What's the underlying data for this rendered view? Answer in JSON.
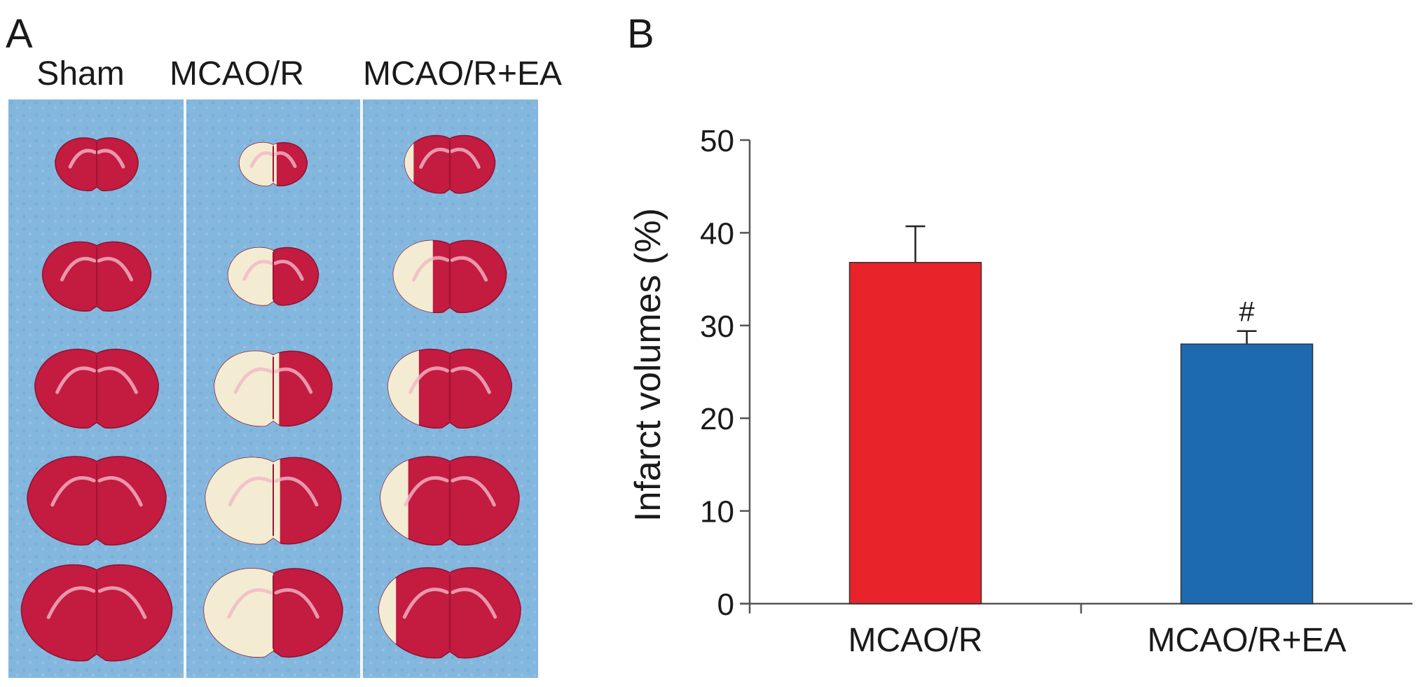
{
  "panel_a": {
    "letter": "A",
    "group_labels": [
      "Sham",
      "MCAO/R",
      "MCAO/R+EA"
    ],
    "colors": {
      "background": "#84b7de",
      "tissue_healthy": "#c41b40",
      "tissue_infarct": "#f3ecd2",
      "divider": "#f4f7fb"
    },
    "columns": [
      {
        "name": "Sham",
        "slices": [
          {
            "size": 0.55,
            "infarct_fraction": 0.0
          },
          {
            "size": 0.72,
            "infarct_fraction": 0.0
          },
          {
            "size": 0.82,
            "infarct_fraction": 0.0
          },
          {
            "size": 0.92,
            "infarct_fraction": 0.0
          },
          {
            "size": 1.0,
            "infarct_fraction": 0.0
          }
        ]
      },
      {
        "name": "MCAO/R",
        "slices": [
          {
            "size": 0.45,
            "infarct_fraction": 0.55
          },
          {
            "size": 0.6,
            "infarct_fraction": 0.5
          },
          {
            "size": 0.78,
            "infarct_fraction": 0.55
          },
          {
            "size": 0.9,
            "infarct_fraction": 0.55
          },
          {
            "size": 0.92,
            "infarct_fraction": 0.5
          }
        ]
      },
      {
        "name": "MCAO/R+EA",
        "slices": [
          {
            "size": 0.6,
            "infarct_fraction": 0.1
          },
          {
            "size": 0.75,
            "infarct_fraction": 0.35
          },
          {
            "size": 0.82,
            "infarct_fraction": 0.25
          },
          {
            "size": 0.92,
            "infarct_fraction": 0.2
          },
          {
            "size": 0.94,
            "infarct_fraction": 0.12
          }
        ]
      }
    ]
  },
  "chart_data": {
    "type": "bar",
    "panel_letter": "B",
    "title": "",
    "xlabel": "",
    "ylabel": "Infarct volumes (%)",
    "categories": [
      "MCAO/R",
      "MCAO/R+EA"
    ],
    "values": [
      36.8,
      28.0
    ],
    "errors": [
      3.9,
      1.4
    ],
    "colors": [
      "#e8232a",
      "#1e6ab0"
    ],
    "annotations": [
      "",
      "#"
    ],
    "ylim": [
      0,
      50
    ],
    "yticks": [
      "0",
      "10",
      "20",
      "30",
      "40",
      "50"
    ],
    "grid": false,
    "legend": "none"
  }
}
